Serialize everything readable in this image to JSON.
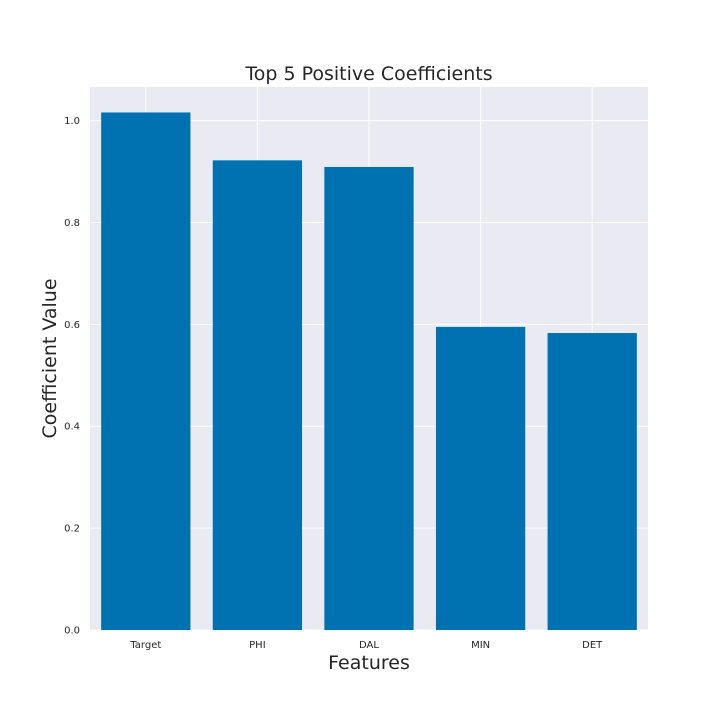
{
  "chart_data": {
    "type": "bar",
    "title": "Top 5 Positive Coefficients",
    "xlabel": "Features",
    "ylabel": "Coefficient Value",
    "categories": [
      "Target",
      "PHI",
      "DAL",
      "MIN",
      "DET"
    ],
    "values": [
      1.016,
      0.922,
      0.909,
      0.595,
      0.583
    ],
    "ylim": [
      0,
      1.066
    ],
    "yticks": [
      0.0,
      0.2,
      0.4,
      0.6,
      0.8,
      1.0
    ],
    "ytick_labels": [
      "0.0",
      "0.2",
      "0.4",
      "0.6",
      "0.8",
      "1.0"
    ],
    "grid": true,
    "colors": {
      "bar": "#0072b2",
      "plot_background": "#eaeaf2",
      "grid": "#ffffff",
      "text": "#262626"
    }
  }
}
